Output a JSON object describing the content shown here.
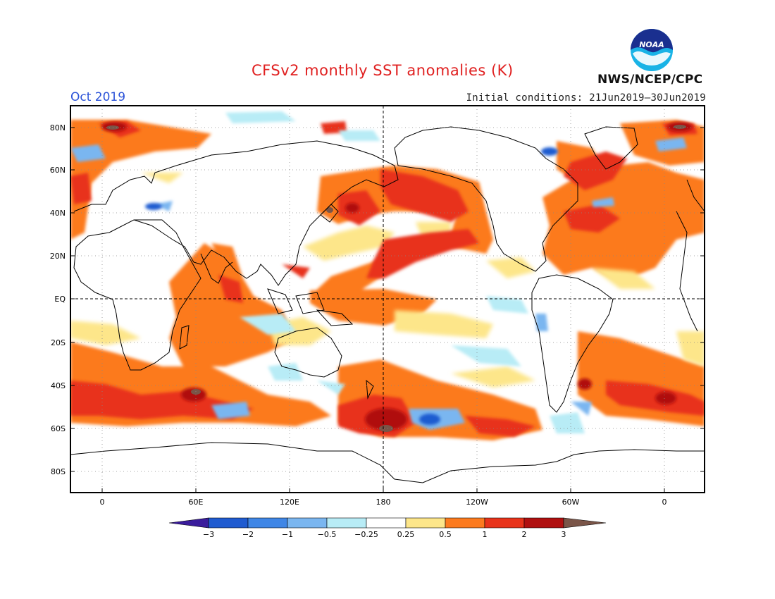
{
  "title": "CFSv2 monthly SST anomalies (K)",
  "month": "Oct 2019",
  "initial_conditions": "Initial conditions: 21Jun2019–30Jun2019",
  "agency": "NWS/NCEP/CPC",
  "logo_text": "NOAA",
  "map": {
    "lat_labels": [
      "80N",
      "60N",
      "40N",
      "20N",
      "EQ",
      "20S",
      "40S",
      "60S",
      "80S"
    ],
    "lon_labels": [
      "0",
      "60E",
      "120E",
      "180",
      "120W",
      "60W",
      "0"
    ]
  },
  "colorbar": {
    "labels": [
      "−3",
      "−2",
      "−1",
      "−0.5",
      "−0.25",
      "0.25",
      "0.5",
      "1",
      "2",
      "3"
    ],
    "colors": [
      "#3a1c9c",
      "#1f5bd0",
      "#3f86e6",
      "#7ab6f0",
      "#b8ecf6",
      "#ffffff",
      "#fde68a",
      "#fc7a1e",
      "#e8331a",
      "#b01010",
      "#7a5548"
    ]
  }
}
